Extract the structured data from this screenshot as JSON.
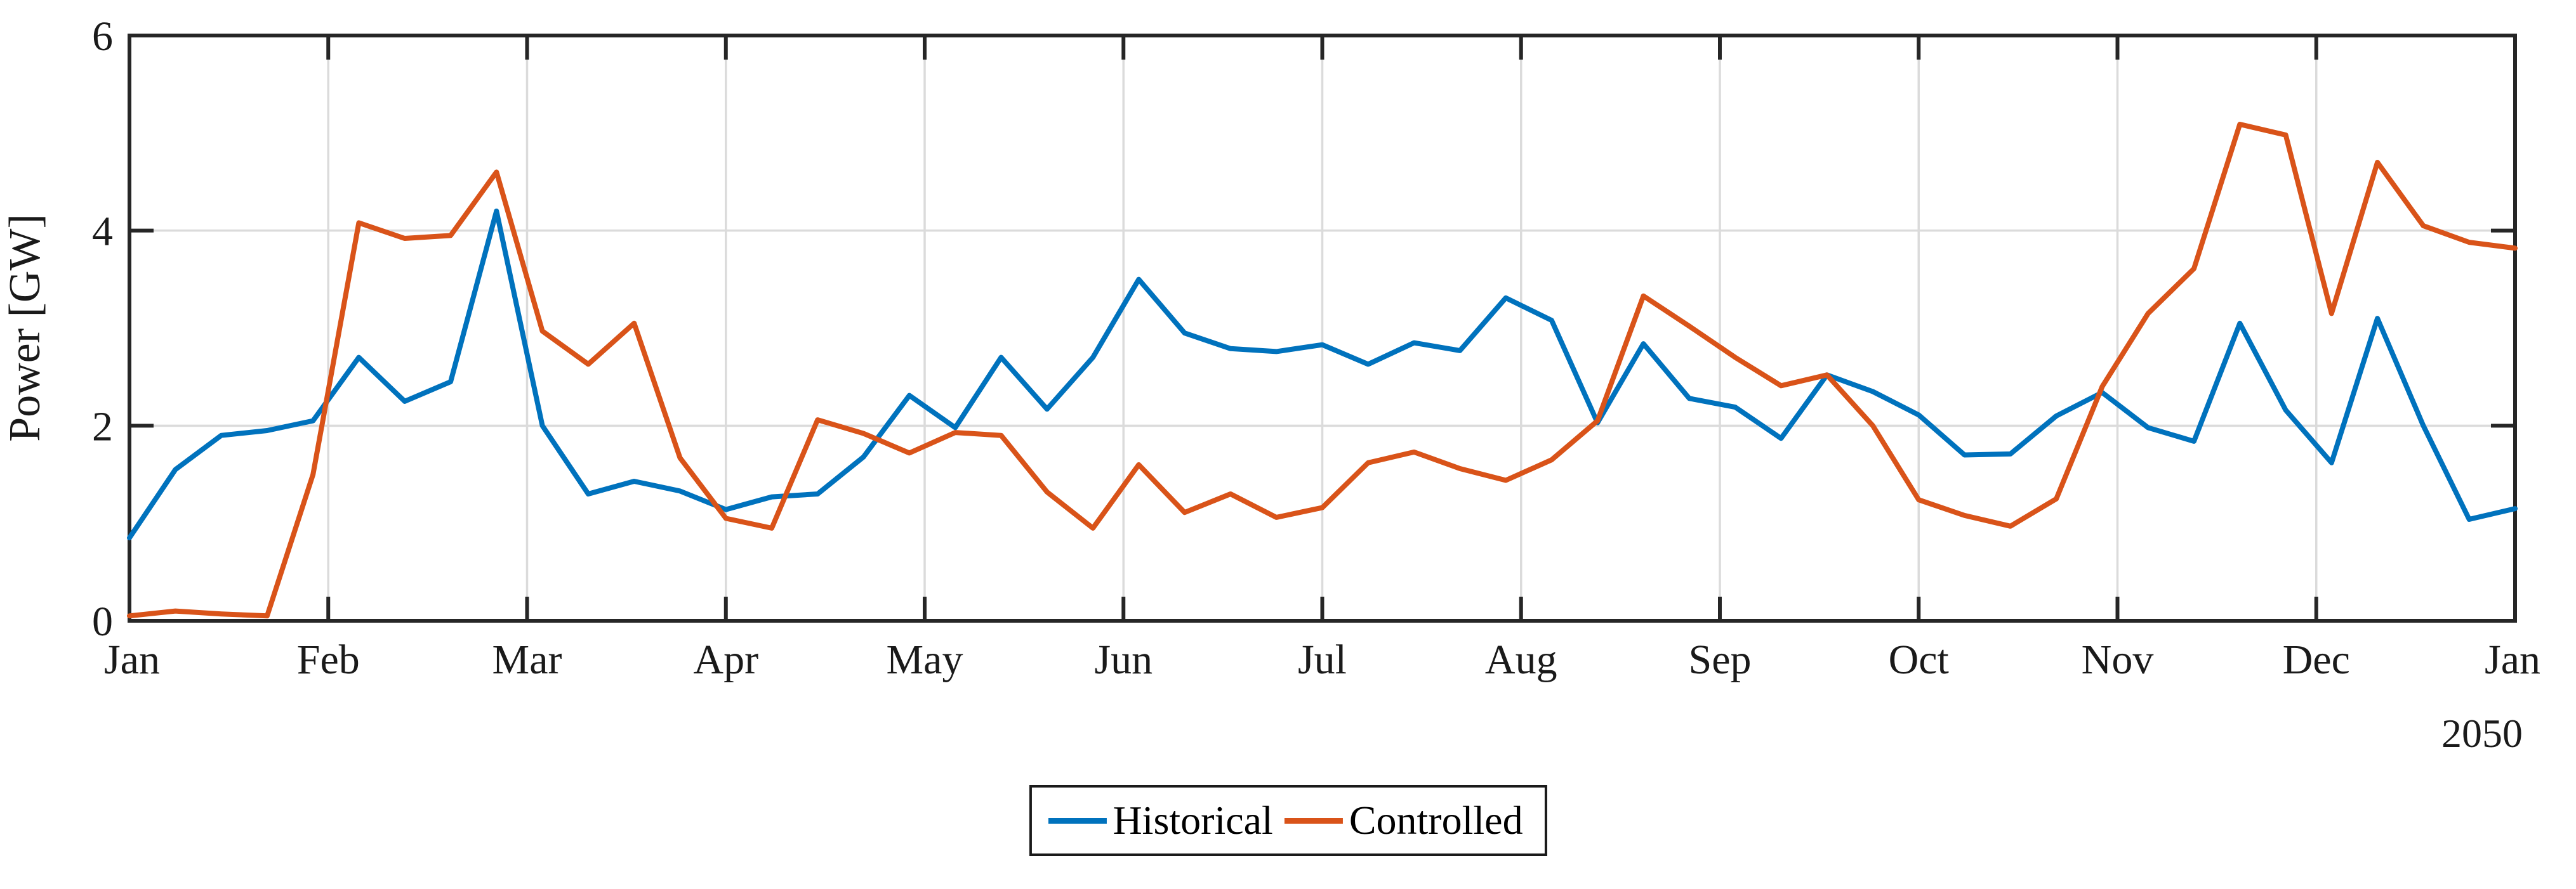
{
  "chart_data": {
    "type": "line",
    "title": "",
    "ylabel": "Power [GW]",
    "xlabel_year": "2050",
    "x_tick_labels": [
      "Jan",
      "Feb",
      "Mar",
      "Apr",
      "May",
      "Jun",
      "Jul",
      "Aug",
      "Sep",
      "Oct",
      "Nov",
      "Dec",
      "Jan"
    ],
    "y_ticks": [
      0,
      2,
      4,
      6
    ],
    "ylim": [
      0,
      6
    ],
    "x_resolution": "weekly",
    "grid": true,
    "legend_position": "bottom-center",
    "axis_color": "#262626",
    "grid_color": "#dbdbdb",
    "series": [
      {
        "name": "Historical",
        "color": "#0072BD",
        "values": [
          0.85,
          1.55,
          1.9,
          1.95,
          2.05,
          2.7,
          2.25,
          2.45,
          4.2,
          2.0,
          1.3,
          1.43,
          1.33,
          1.14,
          1.27,
          1.3,
          1.68,
          2.31,
          1.98,
          2.7,
          2.17,
          2.7,
          3.5,
          2.95,
          2.79,
          2.76,
          2.83,
          2.63,
          2.85,
          2.77,
          3.31,
          3.08,
          2.03,
          2.84,
          2.28,
          2.19,
          1.87,
          2.52,
          2.35,
          2.11,
          1.7,
          1.71,
          2.1,
          2.34,
          1.98,
          1.84,
          3.05,
          2.16,
          1.62,
          3.1,
          2.0,
          1.04,
          1.15
        ]
      },
      {
        "name": "Controlled",
        "color": "#D95319",
        "values": [
          0.05,
          0.1,
          0.07,
          0.05,
          1.5,
          4.08,
          3.92,
          3.95,
          4.6,
          2.97,
          2.63,
          3.05,
          1.67,
          1.05,
          0.95,
          2.06,
          1.92,
          1.72,
          1.93,
          1.9,
          1.32,
          0.95,
          1.6,
          1.11,
          1.3,
          1.06,
          1.16,
          1.62,
          1.73,
          1.56,
          1.44,
          1.65,
          2.05,
          3.33,
          3.02,
          2.7,
          2.41,
          2.52,
          2.0,
          1.24,
          1.08,
          0.97,
          1.25,
          2.4,
          3.15,
          3.61,
          5.09,
          4.98,
          3.15,
          4.7,
          4.05,
          3.88,
          3.82
        ]
      }
    ]
  }
}
